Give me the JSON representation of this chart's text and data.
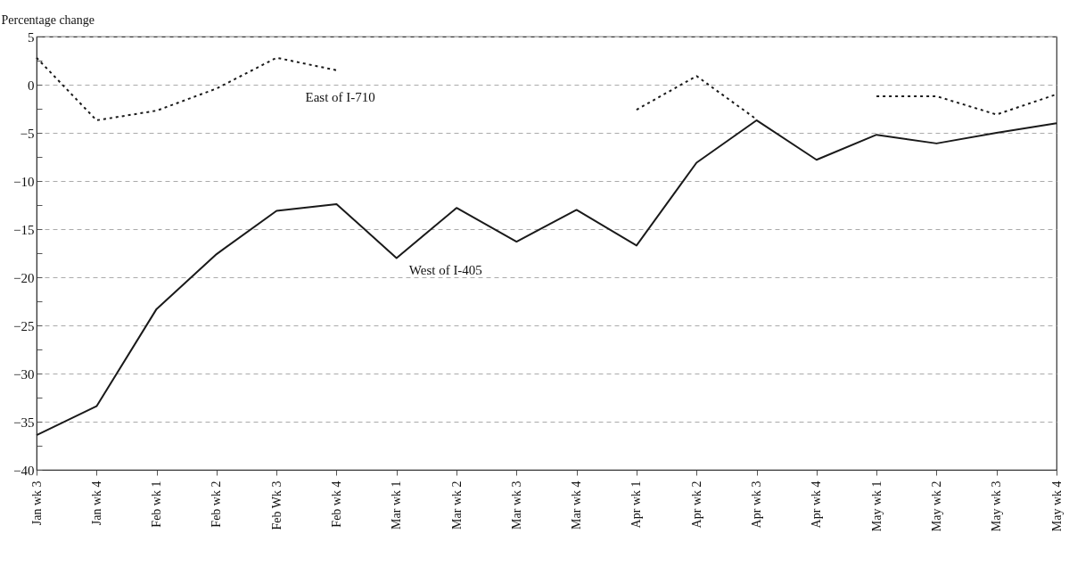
{
  "chart_data": {
    "type": "line",
    "ylabel": "Percentage change",
    "categories": [
      "Jan wk 3",
      "Jan wk 4",
      "Feb wk 1",
      "Feb wk 2",
      "Feb Wk 3",
      "Feb wk 4",
      "Mar wk 1",
      "Mar wk 2",
      "Mar wk 3",
      "Mar wk 4",
      "Apr wk 1",
      "Apr wk 2",
      "Apr wk 3",
      "Apr wk 4",
      "May wk 1",
      "May wk 2",
      "May wk 3",
      "May wk 4"
    ],
    "series": [
      {
        "name": "East of I-710",
        "color": "#1a1a1a",
        "line_style": "dotted",
        "values": [
          2.8,
          -3.7,
          -2.7,
          -0.4,
          2.8,
          1.5,
          null,
          null,
          null,
          null,
          -2.6,
          0.9,
          -3.6,
          null,
          -1.2,
          -1.2,
          -3.1,
          -1.0
        ]
      },
      {
        "name": "West of I-405",
        "color": "#1a1a1a",
        "line_style": "solid",
        "values": [
          -36.4,
          -33.4,
          -23.3,
          -17.6,
          -13.1,
          -12.4,
          -18.0,
          -12.8,
          -16.3,
          -13.0,
          -16.7,
          -8.1,
          -3.7,
          -7.8,
          -5.2,
          -6.1,
          -5.0,
          -4.0
        ]
      }
    ],
    "ylim": [
      -40,
      5
    ],
    "yticks": [
      -40,
      {
        "value": -37.5,
        "label": null
      },
      -35,
      {
        "value": -32.5,
        "label": null
      },
      -30,
      {
        "value": -27.5,
        "label": null
      },
      -25,
      {
        "value": -22.5,
        "label": null
      },
      -20,
      {
        "value": -17.5,
        "label": null
      },
      -15,
      {
        "value": -12.5,
        "label": null
      },
      -10,
      {
        "value": -7.5,
        "label": null
      },
      -5,
      {
        "value": -2.5,
        "label": null
      },
      0,
      {
        "value": 2.5,
        "label": null
      },
      5
    ],
    "grid": "y",
    "legend": false
  }
}
